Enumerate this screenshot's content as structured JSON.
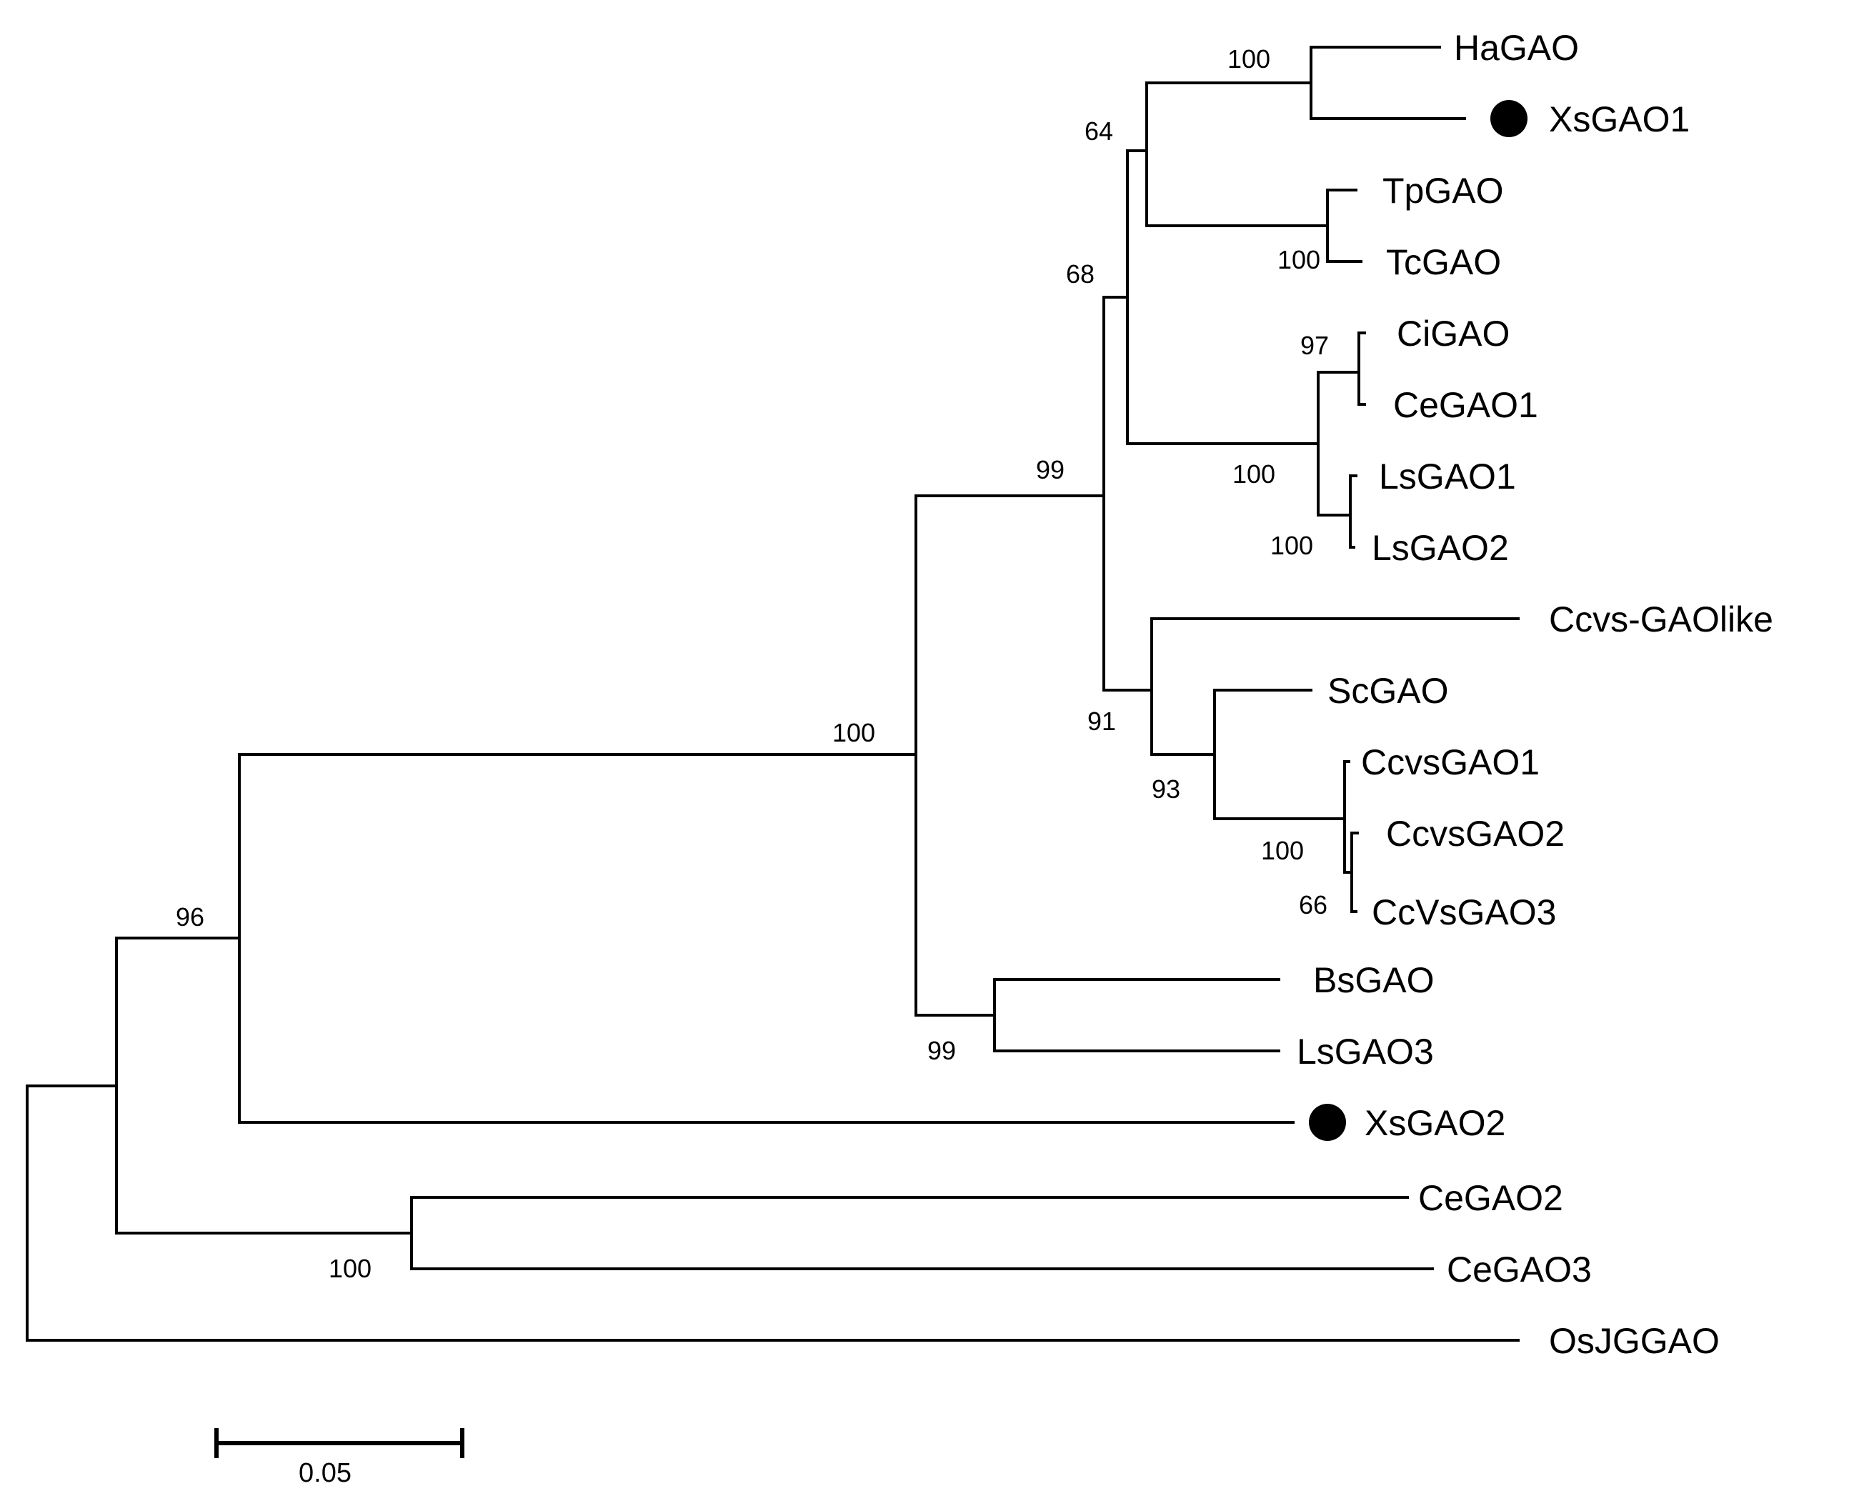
{
  "tree": {
    "leaves": {
      "ha": "HaGAO",
      "xs1": "XsGAO1",
      "tp": "TpGAO",
      "tc": "TcGAO",
      "ci": "CiGAO",
      "ce1": "CeGAO1",
      "ls1": "LsGAO1",
      "ls2": "LsGAO2",
      "ccvslike": "Ccvs-GAOlike",
      "sc": "ScGAO",
      "ccvs1": "CcvsGAO1",
      "ccvs2": "CcvsGAO2",
      "ccvs3": "CcVsGAO3",
      "bs": "BsGAO",
      "ls3": "LsGAO3",
      "xs2": "XsGAO2",
      "ce2": "CeGAO2",
      "ce3": "CeGAO3",
      "os": "OsJGGAO"
    },
    "bootstrap": {
      "ha_xs1": "100",
      "ha_tp": "64",
      "tp_tc": "100",
      "ha_ls": "68",
      "ci_ce1": "97",
      "ci_ls": "100",
      "ls1_ls2": "100",
      "ha_ccvs": "99",
      "ccvs_group": "91",
      "sc_ccvs": "93",
      "ccvs1_3": "100",
      "ccvs2_3": "66",
      "ingroup": "100",
      "bs_ls3": "99",
      "with_xs2": "96",
      "ce2_ce3": "100"
    },
    "highlighted_marker_color": "#000000"
  },
  "scale_bar": {
    "label": "0.05",
    "value": 0.05
  }
}
